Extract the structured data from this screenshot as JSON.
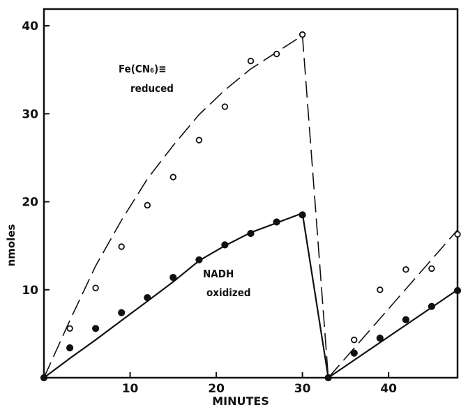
{
  "chart_data": {
    "type": "line",
    "title": "",
    "xlabel": "MINUTES",
    "ylabel": "nmoles",
    "xlim": [
      0,
      48
    ],
    "ylim": [
      0,
      42
    ],
    "x_ticks": [
      10,
      20,
      30,
      40
    ],
    "y_ticks": [
      10,
      20,
      30,
      40
    ],
    "grid": false,
    "annotations": [
      {
        "lines": [
          "Fe(CN₆)≡",
          "reduced"
        ],
        "series": "ferricyanide"
      },
      {
        "lines": [
          "NADH",
          "oxidized"
        ],
        "series": "nadh"
      }
    ],
    "series": [
      {
        "id": "ferricyanide",
        "name": "",
        "marker": "open-circle",
        "line": "dashed",
        "points": [
          [
            0,
            0
          ],
          [
            3,
            5.6
          ],
          [
            6,
            10.2
          ],
          [
            9,
            14.9
          ],
          [
            12,
            19.6
          ],
          [
            15,
            22.8
          ],
          [
            18,
            27.0
          ],
          [
            21,
            30.8
          ],
          [
            24,
            36.0
          ],
          [
            27,
            36.8
          ],
          [
            30,
            39.0
          ],
          [
            33,
            0
          ],
          [
            36,
            4.3
          ],
          [
            39,
            10.0
          ],
          [
            42,
            12.3
          ],
          [
            45,
            12.4
          ],
          [
            48,
            16.3
          ]
        ],
        "fit_lines": [
          [
            [
              0,
              0
            ],
            [
              3,
              6.5
            ],
            [
              6,
              12.7
            ],
            [
              9,
              17.9
            ],
            [
              12,
              22.6
            ],
            [
              15,
              26.4
            ],
            [
              18,
              29.9
            ],
            [
              21,
              32.7
            ],
            [
              24,
              35.1
            ],
            [
              27,
              37.0
            ],
            [
              30,
              38.9
            ],
            [
              33,
              0
            ]
          ],
          [
            [
              33,
              0
            ],
            [
              48,
              16.8
            ]
          ]
        ]
      },
      {
        "id": "nadh",
        "name": "",
        "marker": "filled-circle",
        "line": "solid",
        "points": [
          [
            0,
            0
          ],
          [
            3,
            3.4
          ],
          [
            6,
            5.6
          ],
          [
            9,
            7.4
          ],
          [
            12,
            9.1
          ],
          [
            15,
            11.4
          ],
          [
            18,
            13.4
          ],
          [
            21,
            15.1
          ],
          [
            24,
            16.4
          ],
          [
            27,
            17.7
          ],
          [
            30,
            18.5
          ],
          [
            33,
            0
          ],
          [
            36,
            2.8
          ],
          [
            39,
            4.5
          ],
          [
            42,
            6.6
          ],
          [
            45,
            8.1
          ],
          [
            48,
            9.9
          ]
        ],
        "fit_lines": [
          [
            [
              0,
              0
            ],
            [
              3,
              2.2
            ],
            [
              6,
              4.3
            ],
            [
              9,
              6.5
            ],
            [
              12,
              8.7
            ],
            [
              15,
              10.9
            ],
            [
              18,
              13.3
            ],
            [
              21,
              15.0
            ],
            [
              24,
              16.5
            ],
            [
              27,
              17.6
            ],
            [
              30,
              18.7
            ],
            [
              33,
              0
            ]
          ],
          [
            [
              33,
              0
            ],
            [
              48,
              10.0
            ]
          ]
        ]
      }
    ]
  }
}
